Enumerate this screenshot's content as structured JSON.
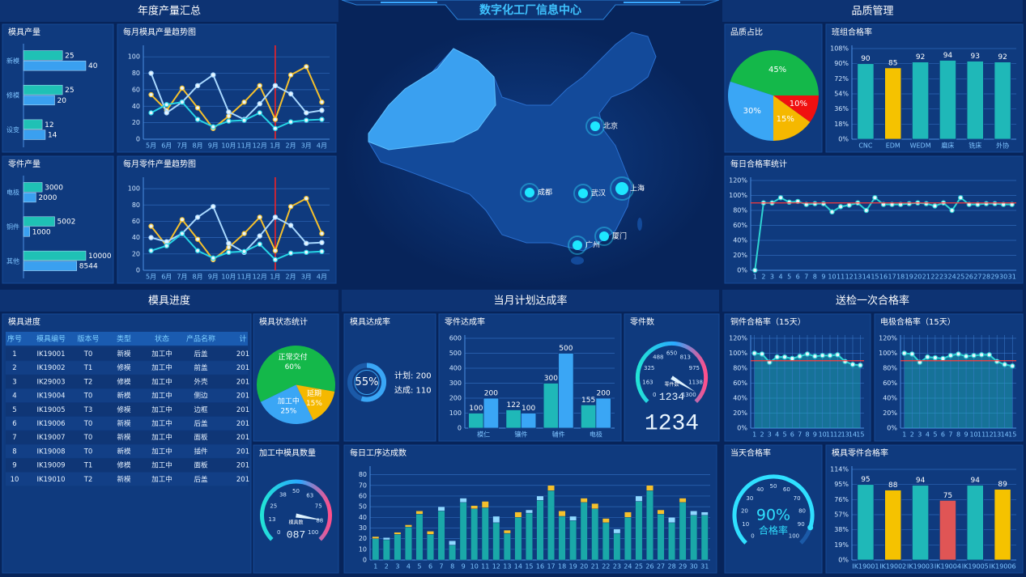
{
  "header": {
    "title": "数字化工厂信息中心"
  },
  "sections": [
    "年度产量汇总",
    "品质管理",
    "模具进度",
    "当月计划达成率",
    "送检一次合格率"
  ],
  "map": {
    "cities": [
      "北京",
      "上海",
      "武汉",
      "成都",
      "广州",
      "厦门"
    ]
  },
  "table": {
    "title": "模具进度",
    "columns": [
      "序号",
      "模具编号",
      "版本号",
      "类型",
      "状态",
      "产品名称",
      "计"
    ],
    "rows": [
      [
        "1",
        "IK19001",
        "T0",
        "新模",
        "加工中",
        "后盖",
        "201"
      ],
      [
        "2",
        "IK19002",
        "T1",
        "修模",
        "加工中",
        "前盖",
        "201"
      ],
      [
        "3",
        "IK29003",
        "T2",
        "修模",
        "加工中",
        "外壳",
        "201"
      ],
      [
        "4",
        "IK19004",
        "T0",
        "新模",
        "加工中",
        "侧边",
        "201"
      ],
      [
        "5",
        "IK19005",
        "T3",
        "修模",
        "加工中",
        "边框",
        "201"
      ],
      [
        "6",
        "IK19006",
        "T0",
        "新模",
        "加工中",
        "后盖",
        "201"
      ],
      [
        "7",
        "IK19007",
        "T0",
        "新模",
        "加工中",
        "面板",
        "201"
      ],
      [
        "8",
        "IK19008",
        "T0",
        "新模",
        "加工中",
        "插件",
        "201"
      ],
      [
        "9",
        "IK19009",
        "T1",
        "修模",
        "加工中",
        "面板",
        "201"
      ],
      [
        "10",
        "IK19010",
        "T2",
        "新模",
        "加工中",
        "后盖",
        "201"
      ]
    ]
  },
  "chart_data": [
    {
      "type": "hbar",
      "title": "模具产量",
      "categories": [
        "新模",
        "修模",
        "设变"
      ],
      "series": [
        {
          "color": "#1fc1b5",
          "values": [
            25,
            25,
            12
          ]
        },
        {
          "color": "#3aa0f0",
          "values": [
            40,
            20,
            14
          ]
        }
      ]
    },
    {
      "type": "line",
      "title": "每月模具产量趋势图",
      "categories": [
        "5月",
        "6月",
        "7月",
        "8月",
        "9月",
        "10月",
        "11月",
        "12月",
        "1月",
        "2月",
        "3月",
        "4月"
      ],
      "ylim": [
        0,
        110
      ],
      "yticks": [
        0,
        20,
        40,
        60,
        80,
        100
      ],
      "grid": true,
      "highlight_category": "1月",
      "series": [
        {
          "color": "#f5c02c",
          "values": [
            54,
            35,
            62,
            38,
            13,
            28,
            45,
            65,
            24,
            78,
            88,
            45
          ]
        },
        {
          "color": "#a8d8ff",
          "values": [
            80,
            32,
            45,
            65,
            78,
            33,
            24,
            43,
            65,
            55,
            32,
            35
          ]
        },
        {
          "color": "#26d5e6",
          "values": [
            32,
            42,
            45,
            24,
            15,
            22,
            23,
            32,
            13,
            21,
            23,
            24
          ]
        }
      ]
    },
    {
      "type": "hbar",
      "title": "零件产量",
      "categories": [
        "电极",
        "铜件",
        "其他"
      ],
      "series": [
        {
          "color": "#1fc1b5",
          "values": [
            3000,
            5002,
            10000
          ]
        },
        {
          "color": "#3aa0f0",
          "values": [
            2000,
            1000,
            8544
          ]
        }
      ]
    },
    {
      "type": "line",
      "title": "每月零件产量趋势图",
      "categories": [
        "5月",
        "6月",
        "7月",
        "8月",
        "9月",
        "10月",
        "11月",
        "12月",
        "1月",
        "2月",
        "3月",
        "4月"
      ],
      "ylim": [
        0,
        110
      ],
      "yticks": [
        0,
        20,
        40,
        60,
        80,
        100
      ],
      "grid": true,
      "highlight_category": "1月",
      "series": [
        {
          "color": "#f5c02c",
          "values": [
            54,
            30,
            62,
            38,
            13,
            28,
            45,
            65,
            24,
            78,
            88,
            45
          ]
        },
        {
          "color": "#a8d8ff",
          "values": [
            40,
            35,
            45,
            65,
            78,
            33,
            22,
            42,
            65,
            55,
            33,
            34
          ]
        },
        {
          "color": "#26d5e6",
          "values": [
            24,
            30,
            45,
            24,
            15,
            22,
            23,
            32,
            13,
            21,
            22,
            23
          ]
        }
      ]
    },
    {
      "type": "pie",
      "title": "品质占比",
      "values": [
        45,
        10,
        15,
        30
      ],
      "value_labels": [
        "45%",
        "10%",
        "15%",
        "30%"
      ],
      "colors": [
        "#14b84a",
        "#f01010",
        "#f5b800",
        "#3aa6f5"
      ]
    },
    {
      "type": "bar",
      "title": "班组合格率",
      "categories": [
        "CNC",
        "EDM",
        "WEDM",
        "磨床",
        "铣床",
        "外协"
      ],
      "values": [
        90,
        85,
        92,
        94,
        93,
        92
      ],
      "colors": [
        "#1fb8b8",
        "#f5c200",
        "#1fb8b8",
        "#1fb8b8",
        "#1fb8b8",
        "#1fb8b8"
      ],
      "ylim": [
        0,
        108
      ],
      "yticks": [
        {
          "value": 0,
          "label": "0%"
        },
        {
          "value": 18,
          "label": "18%"
        },
        {
          "value": 36,
          "label": "36%"
        },
        {
          "value": 54,
          "label": "54%"
        },
        {
          "value": 72,
          "label": "72%"
        },
        {
          "value": 90,
          "label": "90%"
        },
        {
          "value": 108,
          "label": "108%"
        }
      ],
      "grid": true,
      "show_values": true
    },
    {
      "type": "line",
      "title": "每日合格率统计",
      "categories": [
        "1",
        "2",
        "3",
        "4",
        "5",
        "6",
        "7",
        "8",
        "9",
        "10",
        "11",
        "12",
        "13",
        "14",
        "15",
        "16",
        "17",
        "18",
        "19",
        "20",
        "21",
        "22",
        "23",
        "24",
        "25",
        "26",
        "27",
        "28",
        "29",
        "30",
        "31"
      ],
      "values": [
        0,
        90,
        90,
        97,
        91,
        92,
        88,
        89,
        89,
        78,
        85,
        87,
        90,
        80,
        97,
        88,
        88,
        88,
        89,
        90,
        89,
        86,
        90,
        80,
        97,
        88,
        88,
        89,
        89,
        88,
        88
      ],
      "color": "#2fd3d3",
      "ylim": [
        0,
        120
      ],
      "yticks": [
        {
          "value": 0,
          "label": "0%"
        },
        {
          "value": 20,
          "label": "20%"
        },
        {
          "value": 40,
          "label": "40%"
        },
        {
          "value": 60,
          "label": "60%"
        },
        {
          "value": 80,
          "label": "80%"
        },
        {
          "value": 100,
          "label": "100%"
        },
        {
          "value": 120,
          "label": "120%"
        }
      ],
      "grid": true,
      "target": 90
    },
    {
      "type": "pie",
      "title": "模具状态统计",
      "categories": [
        "正常交付",
        "延期",
        "加工中"
      ],
      "values": [
        60,
        15,
        25
      ],
      "value_labels": [
        "60%",
        "15%",
        "25%"
      ],
      "colors": [
        "#14b84a",
        "#f5b800",
        "#3aa6f5"
      ]
    },
    {
      "type": "gauge",
      "title": "加工中模具数量",
      "label": "模具数",
      "values": [
        87
      ],
      "value_labels": [
        "087"
      ],
      "ylim": [
        0,
        100
      ],
      "ticks": [
        0,
        13,
        25,
        38,
        50,
        63,
        75,
        88,
        100
      ],
      "needle": true
    },
    {
      "type": "ring",
      "title": "模具达成率",
      "values": [
        55
      ],
      "value_labels": [
        "55%"
      ],
      "annotations": [
        "计划: 200",
        "达成: 110"
      ],
      "color": "#3aa6f5"
    },
    {
      "type": "bar",
      "title": "零件达成率",
      "categories": [
        "模仁",
        "镶件",
        "辅件",
        "电极"
      ],
      "series": [
        {
          "color": "#1fb8b8",
          "values": [
            100,
            122,
            300,
            155
          ]
        },
        {
          "color": "#3aa6f5",
          "values": [
            200,
            100,
            500,
            200
          ]
        }
      ],
      "ylim": [
        0,
        600
      ],
      "yticks": [
        0,
        100,
        200,
        300,
        400,
        500,
        600
      ],
      "grid": true,
      "show_values": true
    },
    {
      "type": "gauge",
      "title": "零件数",
      "label": "零件数",
      "values": [
        1234
      ],
      "ylim": [
        0,
        1300
      ],
      "ticks": [
        0,
        163,
        325,
        488,
        650,
        813,
        975,
        1138,
        1300
      ],
      "needle": true
    },
    {
      "type": "bar",
      "title": "每日工序达成数",
      "stacked": true,
      "categories": [
        "1",
        "2",
        "3",
        "4",
        "5",
        "6",
        "7",
        "8",
        "9",
        "10",
        "11",
        "12",
        "13",
        "14",
        "15",
        "16",
        "17",
        "18",
        "19",
        "20",
        "21",
        "22",
        "23",
        "24",
        "25",
        "26",
        "27",
        "28",
        "29",
        "30",
        "31"
      ],
      "ylim": [
        0,
        85
      ],
      "yticks": [
        0,
        10,
        20,
        30,
        40,
        50,
        60,
        70,
        80
      ],
      "grid": true,
      "series": [
        {
          "color": "#1aa8a8",
          "values": [
            20,
            19,
            24,
            31,
            43,
            24,
            46,
            14,
            54,
            48,
            49,
            35,
            25,
            40,
            44,
            56,
            65,
            41,
            37,
            54,
            48,
            35,
            25,
            40,
            55,
            65,
            43,
            35,
            54,
            42,
            42
          ]
        },
        {
          "color": "#8fd8ff",
          "values": [
            0,
            2,
            0,
            0,
            0,
            0,
            4,
            4,
            4,
            0,
            0,
            6,
            0,
            0,
            3,
            4,
            0,
            0,
            4,
            0,
            0,
            0,
            4,
            0,
            5,
            0,
            0,
            5,
            0,
            4,
            3
          ]
        },
        {
          "color": "#f5c02c",
          "values": [
            2,
            0,
            2,
            2,
            3,
            3,
            0,
            0,
            0,
            3,
            6,
            0,
            3,
            5,
            0,
            0,
            5,
            5,
            0,
            4,
            5,
            4,
            0,
            5,
            0,
            5,
            4,
            0,
            4,
            0,
            0
          ]
        }
      ]
    },
    {
      "type": "area",
      "title": "铜件合格率（15天）",
      "categories": [
        "1",
        "2",
        "3",
        "4",
        "5",
        "6",
        "7",
        "8",
        "9",
        "10",
        "11",
        "12",
        "13",
        "14",
        "15"
      ],
      "values": [
        100,
        99,
        88,
        95,
        95,
        93,
        96,
        99,
        96,
        97,
        97,
        98,
        89,
        85,
        84
      ],
      "color": "#2fd3d3",
      "ylim": [
        0,
        120
      ],
      "yticks": [
        {
          "value": 0,
          "label": "0%"
        },
        {
          "value": 20,
          "label": "20%"
        },
        {
          "value": 40,
          "label": "40%"
        },
        {
          "value": 60,
          "label": "60%"
        },
        {
          "value": 80,
          "label": "80%"
        },
        {
          "value": 100,
          "label": "100%"
        },
        {
          "value": 120,
          "label": "120%"
        }
      ],
      "grid": true,
      "target": 90
    },
    {
      "type": "area",
      "title": "电极合格率（15天）",
      "categories": [
        "1",
        "2",
        "3",
        "4",
        "5",
        "6",
        "7",
        "8",
        "9",
        "10",
        "11",
        "12",
        "13",
        "14",
        "15"
      ],
      "values": [
        100,
        99,
        88,
        95,
        94,
        93,
        97,
        99,
        96,
        97,
        98,
        98,
        89,
        85,
        83
      ],
      "color": "#2fd3d3",
      "ylim": [
        0,
        120
      ],
      "yticks": [
        {
          "value": 0,
          "label": "0%"
        },
        {
          "value": 20,
          "label": "20%"
        },
        {
          "value": 40,
          "label": "40%"
        },
        {
          "value": 60,
          "label": "60%"
        },
        {
          "value": 80,
          "label": "80%"
        },
        {
          "value": 100,
          "label": "100%"
        },
        {
          "value": 120,
          "label": "120%"
        }
      ],
      "grid": true,
      "target": 90
    },
    {
      "type": "gauge",
      "title": "当天合格率",
      "label": "合格率",
      "values": [
        90
      ],
      "value_labels": [
        "90%"
      ],
      "ylim": [
        0,
        100
      ],
      "ticks": [
        0,
        10,
        20,
        30,
        40,
        50,
        60,
        70,
        80,
        90,
        100
      ],
      "needle": false
    },
    {
      "type": "bar",
      "title": "模具零件合格率",
      "categories": [
        "IK19001",
        "IK19002",
        "IK19003",
        "IK19004",
        "IK19005",
        "IK19006"
      ],
      "values": [
        95,
        88,
        94,
        75,
        94,
        89
      ],
      "colors": [
        "#1fb8b8",
        "#f5c200",
        "#1fb8b8",
        "#e05555",
        "#1fb8b8",
        "#f5c200"
      ],
      "ylim": [
        0,
        114
      ],
      "yticks": [
        {
          "value": 0,
          "label": "0%"
        },
        {
          "value": 19,
          "label": "19%"
        },
        {
          "value": 38,
          "label": "38%"
        },
        {
          "value": 57,
          "label": "57%"
        },
        {
          "value": 76,
          "label": "76%"
        },
        {
          "value": 95,
          "label": "95%"
        },
        {
          "value": 114,
          "label": "114%"
        }
      ],
      "grid": true,
      "show_values": true
    }
  ]
}
